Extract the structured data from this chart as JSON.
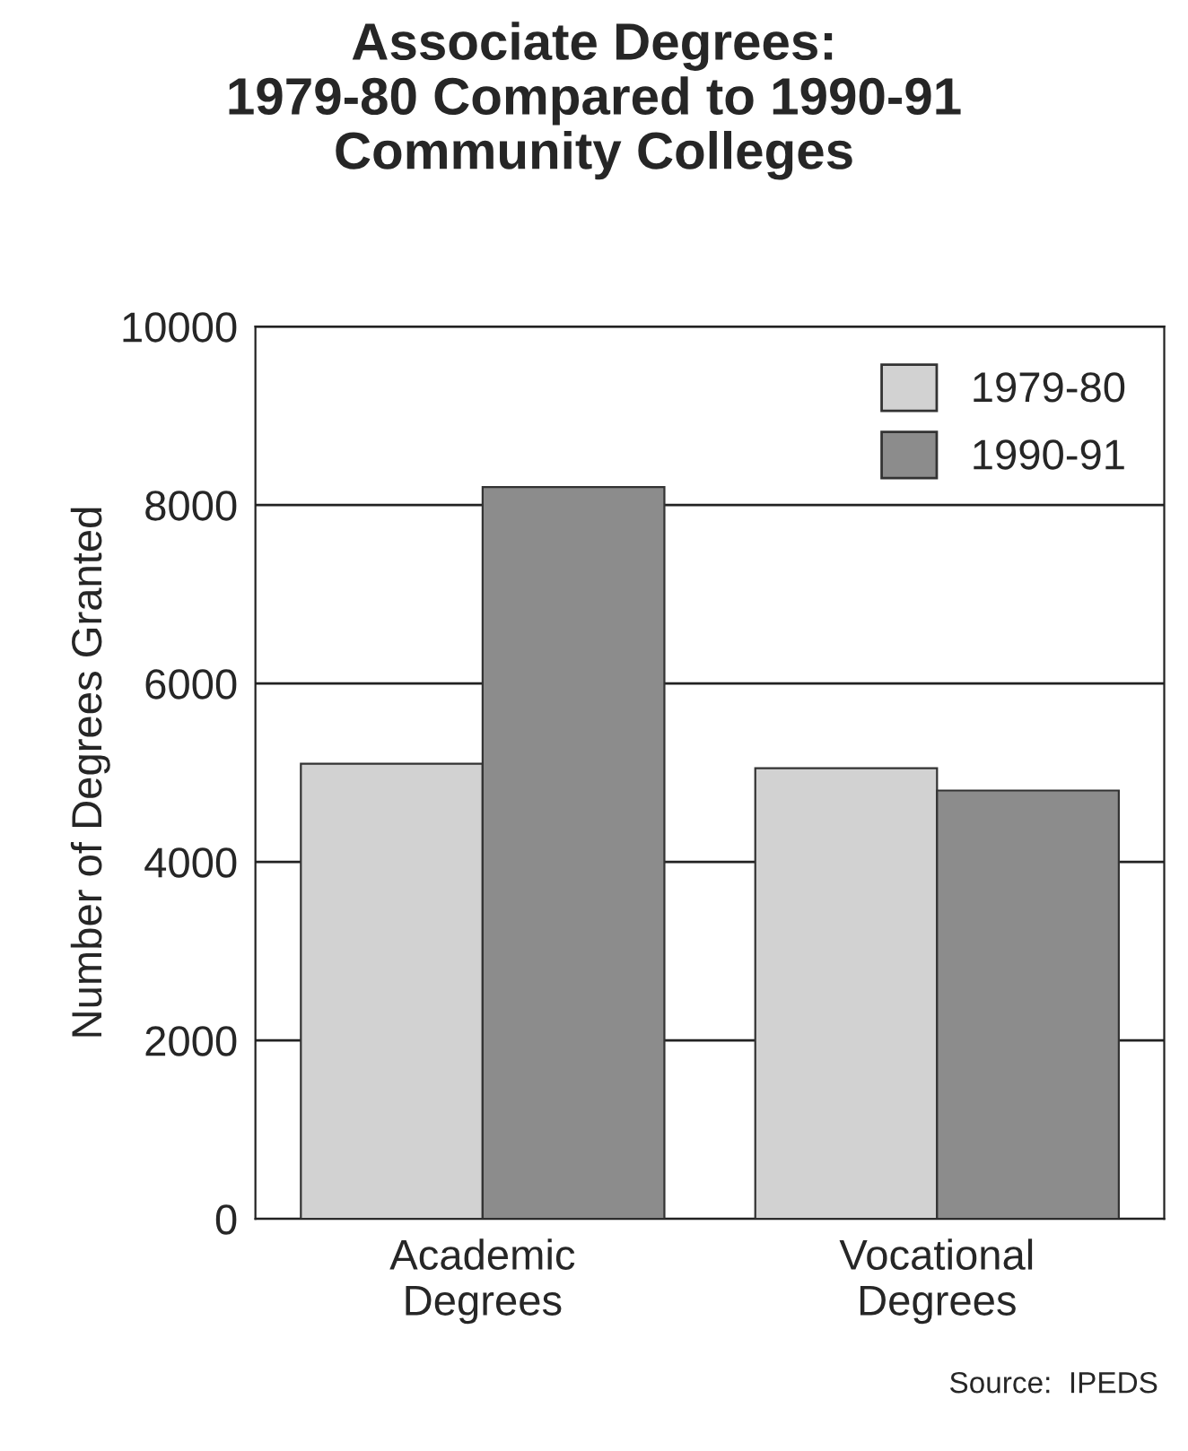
{
  "chart_data": {
    "type": "bar",
    "title": "Associate Degrees:\n1979-80 Compared to 1990-91\nCommunity Colleges",
    "ylabel": "Number of Degrees Granted",
    "categories": [
      "Academic\nDegrees",
      "Vocational\nDegrees"
    ],
    "series": [
      {
        "name": "1979-80",
        "color": "#d2d2d2",
        "values": [
          5100,
          5050
        ]
      },
      {
        "name": "1990-91",
        "color": "#8c8c8c",
        "values": [
          8200,
          4800
        ]
      }
    ],
    "ylim": [
      0,
      10000
    ],
    "yticks": [
      0,
      2000,
      4000,
      6000,
      8000,
      10000
    ],
    "grid": "y",
    "legend": "top right",
    "annotations": [
      "Source:  IPEDS"
    ]
  }
}
